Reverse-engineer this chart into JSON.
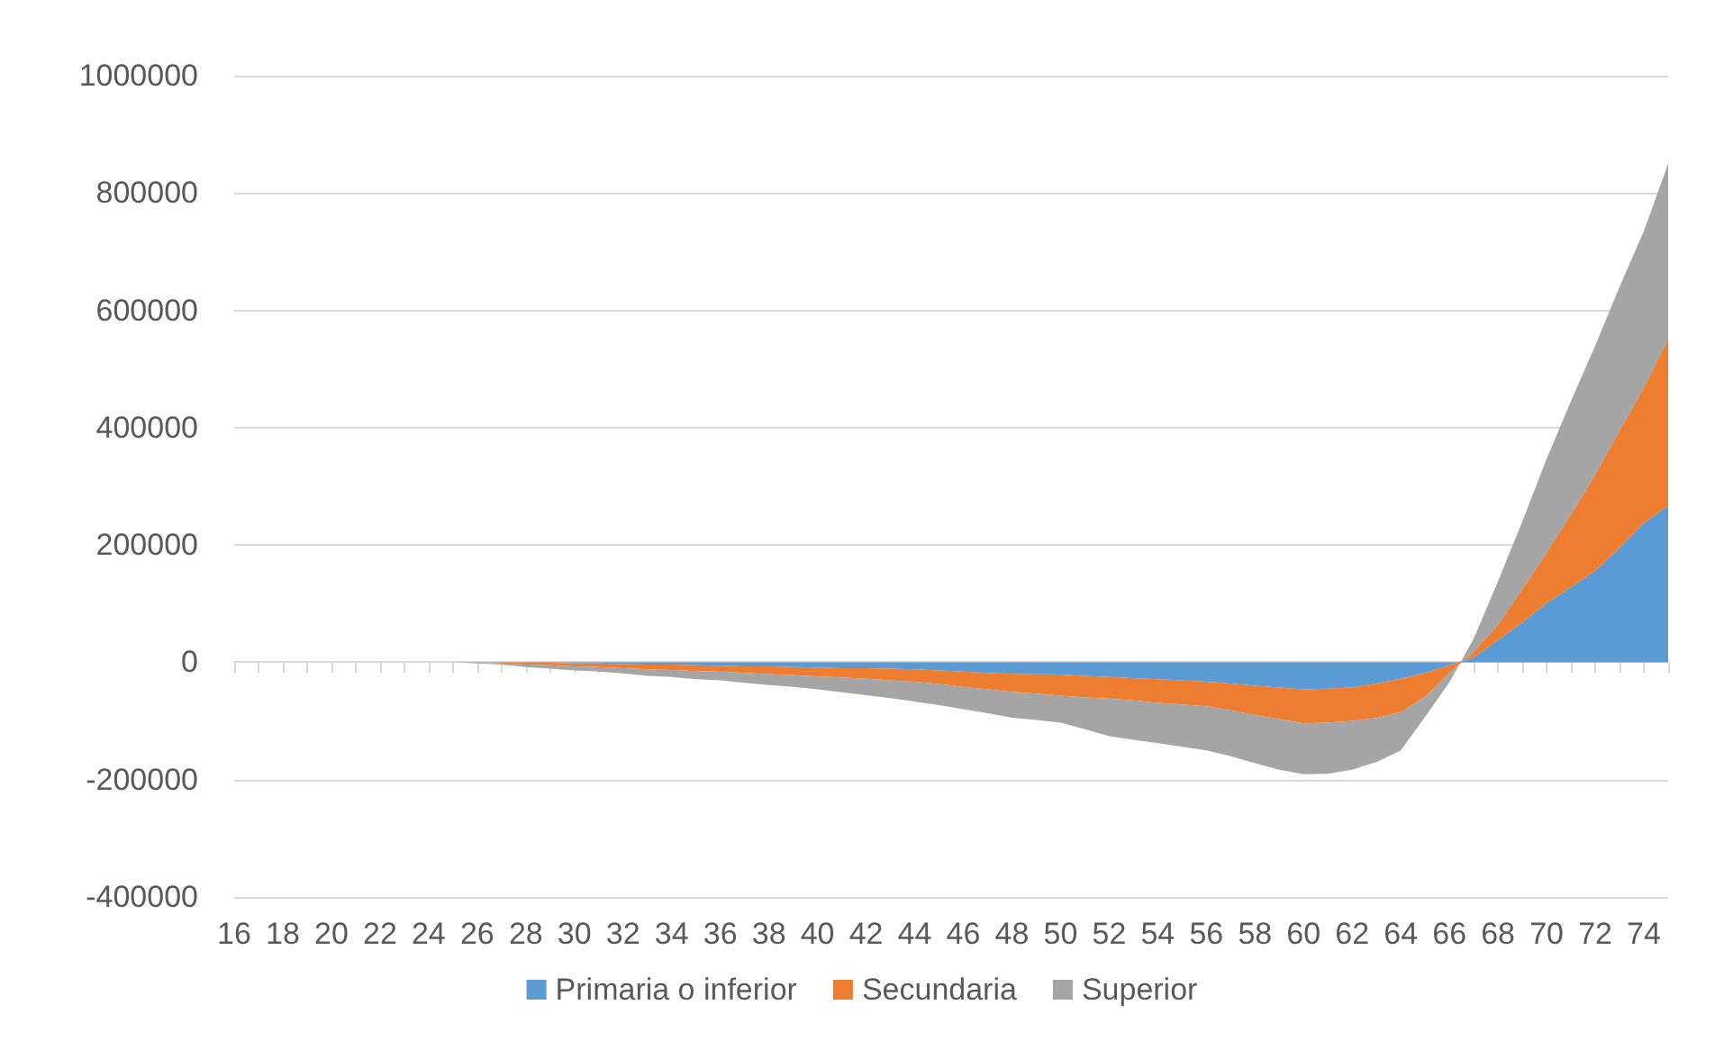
{
  "chart_data": {
    "type": "area",
    "stacked": true,
    "categories": [
      "16",
      null,
      "18",
      null,
      "20",
      null,
      "22",
      null,
      "24",
      null,
      "26",
      null,
      "28",
      null,
      "30",
      null,
      "32",
      null,
      "34",
      null,
      "36",
      null,
      "38",
      null,
      "40",
      null,
      "42",
      null,
      "44",
      null,
      "46",
      null,
      "48",
      null,
      "50",
      null,
      "52",
      null,
      "54",
      null,
      "56",
      null,
      "58",
      null,
      "60",
      null,
      "62",
      null,
      "64",
      null,
      "66",
      null,
      "68",
      null,
      "70",
      null,
      "72",
      null,
      "74",
      null
    ],
    "series": [
      {
        "name": "Primaria o inferior",
        "color": "#5b9bd5",
        "values": [
          0,
          0,
          0,
          0,
          0,
          0,
          0,
          0,
          0,
          0,
          0,
          0,
          -1000,
          -1000,
          -2000,
          -2000,
          -3000,
          -4000,
          -4000,
          -5000,
          -6000,
          -7000,
          -7000,
          -8000,
          -9000,
          -10000,
          -10000,
          -11000,
          -12000,
          -14000,
          -16000,
          -18000,
          -19500,
          -20500,
          -21000,
          -23000,
          -25000,
          -27000,
          -29000,
          -31000,
          -33000,
          -36000,
          -40000,
          -43000,
          -46000,
          -45000,
          -43000,
          -36000,
          -28000,
          -18000,
          -5000,
          8000,
          38000,
          68000,
          101000,
          128000,
          156000,
          195000,
          237000,
          267000
        ]
      },
      {
        "name": "Secundaria",
        "color": "#ed7d31",
        "values": [
          0,
          0,
          0,
          0,
          0,
          0,
          0,
          0,
          0,
          0,
          -1000,
          -2000,
          -3000,
          -4000,
          -5000,
          -6000,
          -7000,
          -8000,
          -9000,
          -10000,
          -10000,
          -11000,
          -13000,
          -14000,
          -15000,
          -16000,
          -18000,
          -20000,
          -21000,
          -23000,
          -26000,
          -28000,
          -31000,
          -33000,
          -36000,
          -37000,
          -37000,
          -38000,
          -40000,
          -41000,
          -42000,
          -46000,
          -50000,
          -54000,
          -58000,
          -58000,
          -57000,
          -59000,
          -57000,
          -41000,
          -13000,
          10000,
          26000,
          57000,
          86000,
          124000,
          164000,
          200000,
          231000,
          284000
        ]
      },
      {
        "name": "Superior",
        "color": "#a5a5a5",
        "values": [
          0,
          0,
          0,
          0,
          0,
          0,
          0,
          0,
          0,
          0,
          -1000,
          -2000,
          -4000,
          -6000,
          -7000,
          -8000,
          -9000,
          -11000,
          -12000,
          -14000,
          -15000,
          -17000,
          -19000,
          -20000,
          -22000,
          -25000,
          -28000,
          -30000,
          -34000,
          -36000,
          -38000,
          -41000,
          -44000,
          -45000,
          -46000,
          -54000,
          -64000,
          -67000,
          -69000,
          -72000,
          -75000,
          -78000,
          -82000,
          -86000,
          -87000,
          -87000,
          -83000,
          -75000,
          -65000,
          -34000,
          -16000,
          22000,
          74000,
          115000,
          160000,
          193000,
          220000,
          245000,
          267000,
          299000
        ]
      }
    ],
    "ylim": [
      -400000,
      1000000
    ],
    "yticks": [
      -400000,
      -200000,
      0,
      200000,
      400000,
      600000,
      800000,
      1000000
    ],
    "grid": "y",
    "legend": "bottom"
  }
}
